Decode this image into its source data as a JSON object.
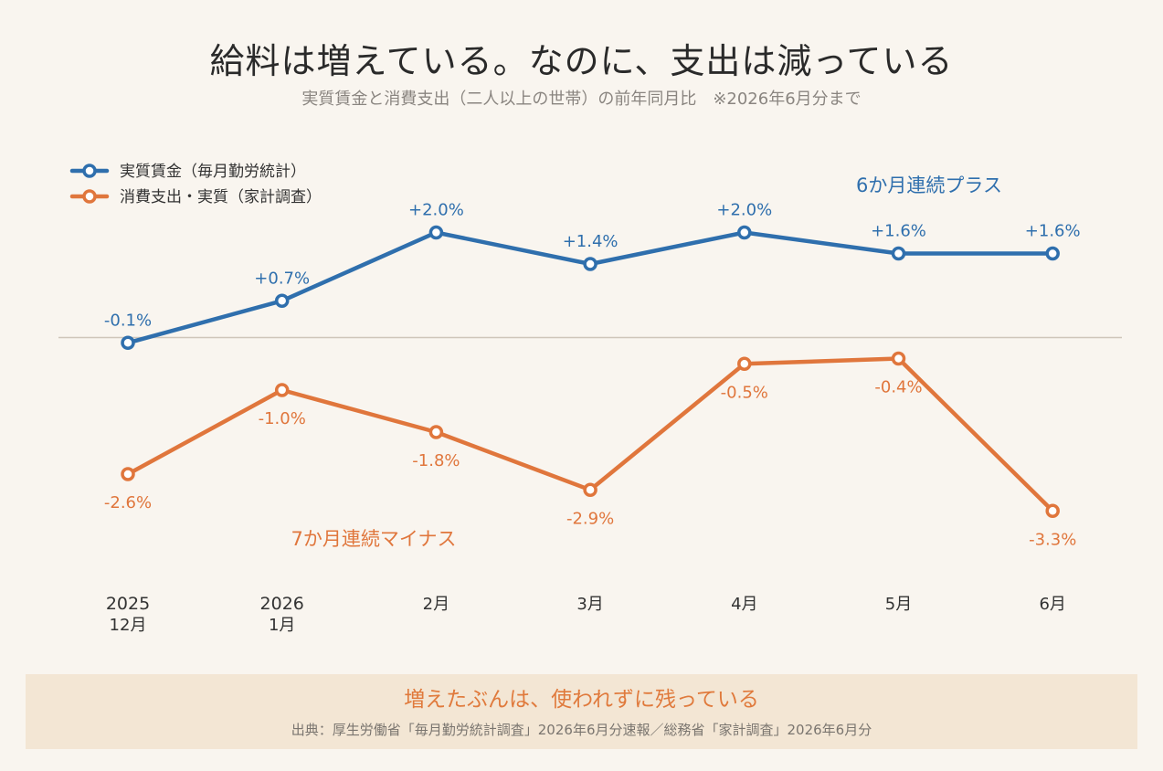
{
  "title": "給料は増えている。なのに、支出は減っている",
  "subtitle": "実質賃金と消費支出（二人以上の世帯）の前年同月比　※2026年6月分まで",
  "chart_data": {
    "type": "line",
    "categories": [
      [
        "2025",
        "12月"
      ],
      [
        "2026",
        "1月"
      ],
      [
        "2月"
      ],
      [
        "3月"
      ],
      [
        "4月"
      ],
      [
        "5月"
      ],
      [
        "6月"
      ]
    ],
    "series": [
      {
        "name": "実質賃金（毎月勤労統計）",
        "color": "#2f6fad",
        "values": [
          -0.1,
          0.7,
          2.0,
          1.4,
          2.0,
          1.6,
          1.6
        ],
        "labels": [
          "-0.1%",
          "+0.7%",
          "+2.0%",
          "+1.4%",
          "+2.0%",
          "+1.6%",
          "+1.6%"
        ]
      },
      {
        "name": "消費支出・実質（家計調査）",
        "color": "#e0763c",
        "values": [
          -2.6,
          -1.0,
          -1.8,
          -2.9,
          -0.5,
          -0.4,
          -3.3
        ],
        "labels": [
          "-2.6%",
          "-1.0%",
          "-1.8%",
          "-2.9%",
          "-0.5%",
          "-0.4%",
          "-3.3%"
        ]
      }
    ],
    "zero_line": true,
    "legend_position": "top-left",
    "annotations": [
      {
        "text": "6か月連続プラス",
        "series": 0
      },
      {
        "text": "7か月連続マイナス",
        "series": 1
      }
    ]
  },
  "footer": {
    "message": "増えたぶんは、使われずに残っている",
    "source": "出典：厚生労働省「毎月勤労統計調査」2026年6月分速報／総務省「家計調査」2026年6月分"
  }
}
